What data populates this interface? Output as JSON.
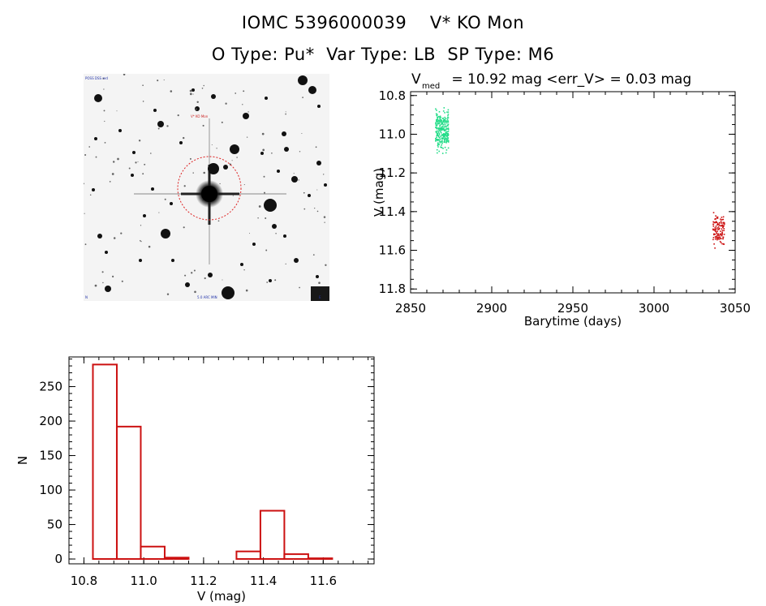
{
  "header": {
    "title_line1": "IOMC 5396000039    V* KO Mon",
    "title_line2": "O Type: Pu*  Var Type: LB  SP Type: M6"
  },
  "image_panel": {
    "tiny_label_top_left": "POSS DSS red",
    "tiny_label_marker": "V* KO Mon",
    "tiny_label_bottom_left": "N",
    "tiny_label_bottom_center": "5.0 ARC MIN",
    "tiny_label_bottom_right": "E"
  },
  "chart_data": [
    {
      "type": "scatter",
      "title_prefix": "V",
      "title_subscript": "med",
      "title_rest": " = 10.92 mag <err_V> = 0.03 mag",
      "xlabel": "Barytime (days)",
      "ylabel": "V (mag)",
      "xlim": [
        2850,
        3050
      ],
      "ylim": [
        11.82,
        10.78
      ],
      "y_inverted": true,
      "x_ticks": [
        2850,
        2900,
        2950,
        3000,
        3050
      ],
      "x_tick_labels": [
        "2850",
        "2900",
        "2950",
        "3000",
        "3050"
      ],
      "y_ticks": [
        10.8,
        11.0,
        11.2,
        11.4,
        11.6,
        11.8
      ],
      "y_tick_labels": [
        "10.8",
        "11.0",
        "11.2",
        "11.4",
        "11.6",
        "11.8"
      ],
      "series": [
        {
          "color": "#22dd88",
          "x_range": [
            2865,
            2873
          ],
          "y_range": [
            10.84,
            11.13
          ]
        },
        {
          "color": "#cc1111",
          "x_range": [
            3036,
            3043
          ],
          "y_range": [
            11.38,
            11.61
          ]
        }
      ]
    },
    {
      "type": "histogram",
      "xlabel": "V (mag)",
      "ylabel": "N",
      "xlim": [
        10.75,
        11.77
      ],
      "ylim": [
        -7,
        293
      ],
      "x_ticks": [
        10.8,
        11.0,
        11.2,
        11.4,
        11.6
      ],
      "x_tick_labels": [
        "10.8",
        "11.0",
        "11.2",
        "11.4",
        "11.6"
      ],
      "y_ticks": [
        0,
        50,
        100,
        150,
        200,
        250
      ],
      "y_tick_labels": [
        "0",
        "50",
        "100",
        "150",
        "200",
        "250"
      ],
      "bar_color": "#cc1111",
      "bin_edges": [
        10.83,
        10.91,
        10.99,
        11.07,
        11.15,
        11.23,
        11.31,
        11.39,
        11.47,
        11.55,
        11.63,
        11.71
      ],
      "counts": [
        282,
        192,
        18,
        2,
        0,
        0,
        11,
        70,
        7,
        1,
        0
      ]
    }
  ]
}
